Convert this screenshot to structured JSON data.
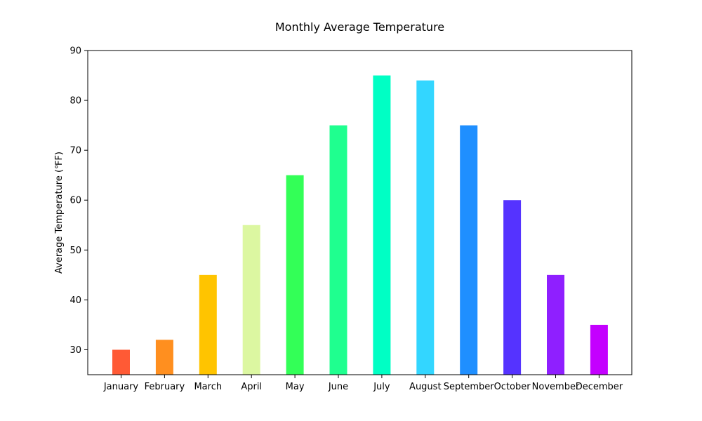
{
  "chart_data": {
    "type": "bar",
    "title": "Monthly Average Temperature",
    "xlabel": "",
    "ylabel": "Average Temperature (℉F)",
    "categories": [
      "January",
      "February",
      "March",
      "April",
      "May",
      "June",
      "July",
      "August",
      "September",
      "October",
      "November",
      "December"
    ],
    "values": [
      30,
      32,
      45,
      55,
      65,
      75,
      85,
      84,
      75,
      60,
      45,
      35
    ],
    "colors": [
      "#ff5a35",
      "#ff8f1f",
      "#ffc400",
      "#dcf7a1",
      "#33ff57",
      "#1fff8f",
      "#00ffc4",
      "#33d6ff",
      "#1f8fff",
      "#5533ff",
      "#8f1fff",
      "#c400ff"
    ],
    "ylim": [
      25,
      90
    ],
    "yticks": [
      30,
      40,
      50,
      60,
      70,
      80,
      90
    ],
    "grid": false,
    "legend": "none"
  }
}
